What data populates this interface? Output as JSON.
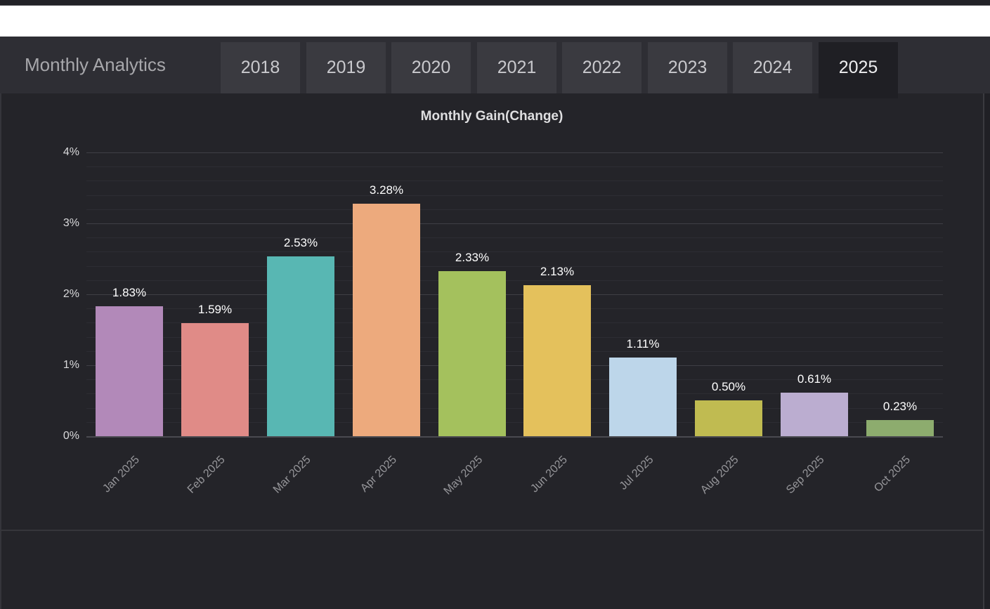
{
  "header": {
    "title": "Monthly Analytics",
    "tabs": [
      {
        "label": "2018",
        "selected": false
      },
      {
        "label": "2019",
        "selected": false
      },
      {
        "label": "2020",
        "selected": false
      },
      {
        "label": "2021",
        "selected": false
      },
      {
        "label": "2022",
        "selected": false
      },
      {
        "label": "2023",
        "selected": false
      },
      {
        "label": "2024",
        "selected": false
      },
      {
        "label": "2025",
        "selected": true
      }
    ]
  },
  "chart_data": {
    "type": "bar",
    "title": "Monthly Gain(Change)",
    "categories": [
      "Jan 2025",
      "Feb 2025",
      "Mar 2025",
      "Apr 2025",
      "May 2025",
      "Jun 2025",
      "Jul 2025",
      "Aug 2025",
      "Sep 2025",
      "Oct 2025"
    ],
    "values": [
      1.83,
      1.59,
      2.53,
      3.28,
      2.33,
      2.13,
      1.11,
      0.5,
      0.61,
      0.23
    ],
    "value_labels": [
      "1.83%",
      "1.59%",
      "2.53%",
      "3.28%",
      "2.33%",
      "2.13%",
      "1.11%",
      "0.50%",
      "0.61%",
      "0.23%"
    ],
    "bar_colors": [
      "#b289b9",
      "#e08b87",
      "#58b7b3",
      "#edaa7d",
      "#a4c15d",
      "#e4c15c",
      "#bdd6ea",
      "#c0bb51",
      "#bbadd0",
      "#8dac6e"
    ],
    "xlabel": "",
    "ylabel": "",
    "y_tick_labels": [
      "0%",
      "1%",
      "2%",
      "3%",
      "4%"
    ],
    "ylim": [
      0,
      4
    ],
    "minor_tick_step": 0.2,
    "grid": true,
    "legend_position": "none"
  },
  "theme": {
    "panel_bg": "#242429",
    "header_bg": "#2e2e34",
    "tab_bg": "#3a3a40",
    "selected_tab_bg": "#1f1f24",
    "major_grid": "#3f3f45",
    "minor_grid": "#2d2d33",
    "value_label_color": "#ffffff",
    "axis_label_color": "#96969a"
  }
}
